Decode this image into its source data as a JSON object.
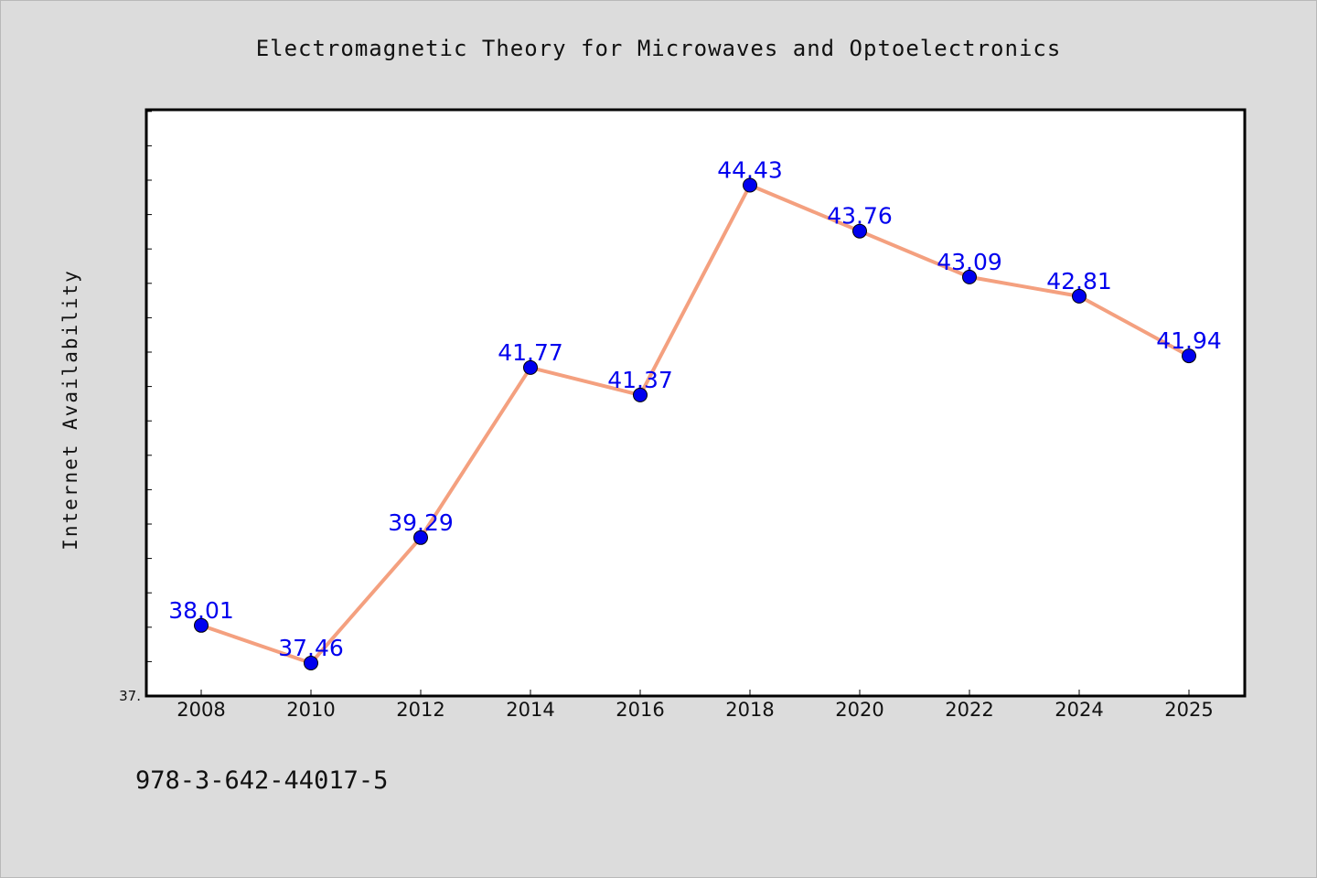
{
  "chart_data": {
    "type": "line",
    "title": "Electromagnetic Theory for Microwaves and Optoelectronics",
    "xlabel": "",
    "ylabel": "Internet Availability",
    "categories": [
      "2008",
      "2010",
      "2012",
      "2014",
      "2016",
      "2018",
      "2020",
      "2022",
      "2024",
      "2025"
    ],
    "series": [
      {
        "values": [
          38.01,
          37.46,
          39.29,
          41.77,
          41.37,
          44.43,
          43.76,
          43.09,
          42.81,
          41.94
        ],
        "labels": [
          "38.01",
          "37.46",
          "39.29",
          "41.77",
          "41.37",
          "44.43",
          "43.76",
          "43.09",
          "42.81",
          "41.94"
        ],
        "line_color": "#f4a07f",
        "marker_color": "#0000ee",
        "label_color": "#0000ee"
      }
    ],
    "ylim": [
      36.98,
      45.53
    ],
    "y_min_label": "37.",
    "grid": false,
    "legend": "none"
  },
  "footer": {
    "isbn": "978-3-642-44017-5"
  },
  "colors": {
    "background": "#dcdcdc",
    "plot_background": "#ffffff",
    "axis": "#000000"
  }
}
